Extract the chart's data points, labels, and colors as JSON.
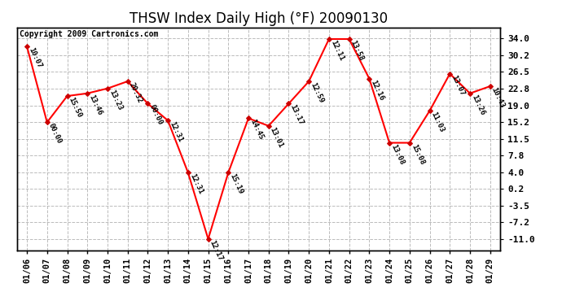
{
  "title": "THSW Index Daily High (°F) 20090130",
  "copyright": "Copyright 2009 Cartronics.com",
  "dates": [
    "01/06",
    "01/07",
    "01/08",
    "01/09",
    "01/10",
    "01/11",
    "01/12",
    "01/13",
    "01/14",
    "01/15",
    "01/16",
    "01/17",
    "01/18",
    "01/19",
    "01/20",
    "01/21",
    "01/22",
    "01/23",
    "01/24",
    "01/25",
    "01/26",
    "01/27",
    "01/28",
    "01/29"
  ],
  "values": [
    32.2,
    15.2,
    21.1,
    21.7,
    22.8,
    24.4,
    19.4,
    15.6,
    3.9,
    -11.0,
    3.9,
    16.1,
    14.4,
    19.4,
    24.4,
    33.9,
    33.9,
    25.0,
    10.6,
    10.6,
    17.8,
    26.1,
    21.7,
    23.3
  ],
  "labels": [
    "10:07",
    "00:00",
    "15:50",
    "13:46",
    "13:23",
    "20:32",
    "00:00",
    "12:31",
    "12:31",
    "12:17",
    "15:19",
    "14:45",
    "13:01",
    "13:17",
    "12:59",
    "12:11",
    "13:58",
    "12:16",
    "13:08",
    "15:08",
    "11:03",
    "13:07",
    "13:26",
    "10:43"
  ],
  "line_color": "#ff0000",
  "marker_color": "#cc0000",
  "background_color": "#ffffff",
  "grid_color": "#bbbbbb",
  "yticks": [
    34.0,
    30.2,
    26.5,
    22.8,
    19.0,
    15.2,
    11.5,
    7.8,
    4.0,
    0.2,
    -3.5,
    -7.2,
    -11.0
  ],
  "ylim": [
    -13.5,
    36.5
  ],
  "title_fontsize": 12,
  "label_fontsize": 6.5,
  "copyright_fontsize": 7,
  "xtick_fontsize": 7.5
}
